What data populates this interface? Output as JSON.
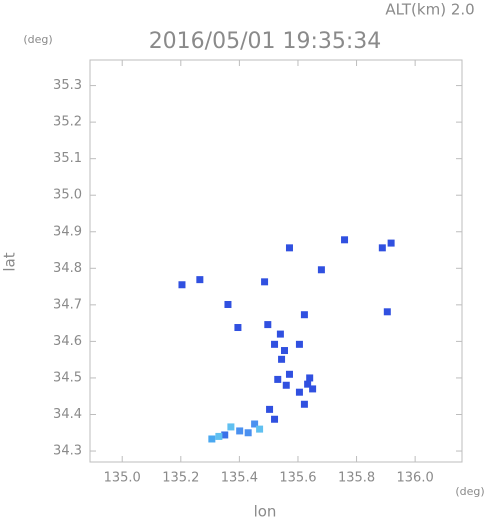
{
  "chart_data": {
    "type": "scatter",
    "title": "2016/05/01 19:35:34",
    "subtitle": "ALT(km) 2.0",
    "x_label": "lon",
    "y_label": "lat",
    "x_unit": "(deg)",
    "y_unit": "(deg)",
    "xlim": [
      134.89,
      136.16
    ],
    "ylim": [
      34.27,
      35.37
    ],
    "xticks": [
      {
        "value": 135,
        "label": "135.0"
      },
      {
        "value": 135.2,
        "label": "135.2"
      },
      {
        "value": 135.4,
        "label": "135.4"
      },
      {
        "value": 135.6,
        "label": "135.6"
      },
      {
        "value": 135.8,
        "label": "135.8"
      },
      {
        "value": 136,
        "label": "136.0"
      }
    ],
    "yticks": [
      34.3,
      34.4,
      34.5,
      34.6,
      34.7,
      34.8,
      34.9,
      {
        "value": 35,
        "label": "35.0"
      },
      35.1,
      35.2,
      35.3
    ],
    "x": [
      135.204,
      135.265,
      135.486,
      135.571,
      135.759,
      135.888,
      135.918,
      135.68,
      135.905,
      135.395,
      135.497,
      135.622,
      135.52,
      135.544,
      135.531,
      135.571,
      135.554,
      135.633,
      135.622,
      135.605,
      135.503,
      135.52,
      135.452,
      135.401,
      135.35,
      135.306,
      135.371,
      135.469,
      135.605,
      135.361,
      135.54,
      135.56,
      135.65,
      135.64,
      135.43,
      135.33
    ],
    "y": [
      34.755,
      34.769,
      34.763,
      34.856,
      34.878,
      34.856,
      34.869,
      34.796,
      34.681,
      34.638,
      34.646,
      34.673,
      34.592,
      34.551,
      34.496,
      34.51,
      34.575,
      34.483,
      34.428,
      34.461,
      34.414,
      34.387,
      34.374,
      34.355,
      34.344,
      34.333,
      34.366,
      34.36,
      34.592,
      34.701,
      34.62,
      34.48,
      34.47,
      34.5,
      34.35,
      34.34
    ],
    "colors": [
      "#3050e0",
      "#3050e0",
      "#3050e0",
      "#3050e0",
      "#3050e0",
      "#3050e0",
      "#3050e0",
      "#3050e0",
      "#3050e0",
      "#3050e0",
      "#3050e0",
      "#3050e0",
      "#3050e0",
      "#3050e0",
      "#3050e0",
      "#3050e0",
      "#3050e0",
      "#3050e0",
      "#3050e0",
      "#3050e0",
      "#3050e0",
      "#3050e0",
      "#4a90f0",
      "#4a90f0",
      "#3a70e8",
      "#4aa8f0",
      "#60c0f0",
      "#60c0f0",
      "#3050e0",
      "#3050e0",
      "#3050e0",
      "#3050e0",
      "#3050e0",
      "#3050e0",
      "#4a90f0",
      "#60c0f0"
    ]
  }
}
